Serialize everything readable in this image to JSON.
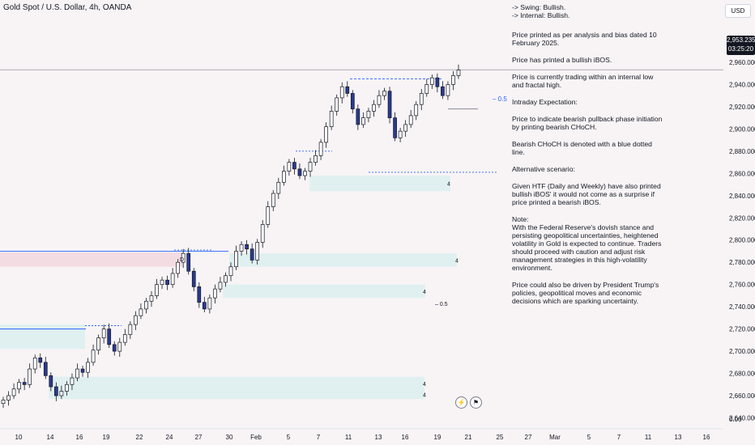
{
  "header": {
    "title": "Gold Spot / U.S. Dollar, 4h, OANDA"
  },
  "currency_button": "USD",
  "price_tag": {
    "price": "2,953.235",
    "countdown": "03:25:20"
  },
  "notes": {
    "swing": "-> Swing:  Bullish.",
    "internal": "-> Internal:  Bullish.",
    "p1": "Price printed as per analysis and bias dated 10 February 2025.",
    "p2": "Price has printed a bullish iBOS.",
    "p3": "Price is currently trading within an internal low and fractal high.",
    "p4": "Intraday Expectation:",
    "p5": "Price to indicate bearish pullback phase initiation by printing bearish CHoCH.",
    "p6": "Bearish CHoCH is denoted with a blue dotted line.",
    "p7": "Alternative scenario:",
    "p8": "Given HTF (Daily and Weekly) have also printed bullish iBOS' it would not come as a surprise if price printed a bearish iBOS.",
    "p9_title": "Note:",
    "p9": "With the Federal Reserve's dovish stance and persisting geopolitical uncertainties, heightened volatility in Gold is expected to continue. Traders should proceed with caution and adjust risk management strategies in this high-volatility environment.",
    "p10": "Price could also be driven by President Trump's policies, geopolitical moves and economic decisions which are sparking uncertainty."
  },
  "annotations": {
    "fib_upper": "0.5",
    "fib_lower": "0.5",
    "zone_label": "4",
    "zone_label_pink": "D"
  },
  "icons": [
    "lightning-icon",
    "flag-icon"
  ],
  "chart_data": {
    "type": "candlestick",
    "title": "Gold Spot / U.S. Dollar, 4h, OANDA",
    "y_ticks": [
      2640,
      2660,
      2680,
      2700,
      2720,
      2740,
      2760,
      2780,
      2800,
      2820,
      2840,
      2860,
      2880,
      2900,
      2920,
      2940,
      2960
    ],
    "y_tick_labels": [
      "2,640.000",
      "2,660.000",
      "2,680.000",
      "2,700.000",
      "2,720.000",
      "2,740.000",
      "2,760.000",
      "2,780.000",
      "2,800.000",
      "2,820.000",
      "2,840.000",
      "2,860.000",
      "2,880.000",
      "2,900.000",
      "2,920.000",
      "2,940.000",
      "2,960.000"
    ],
    "y_zero_label": "0.00",
    "ylim": [
      2630,
      2965
    ],
    "x_tick_labels": [
      "10",
      "14",
      "16",
      "19",
      "22",
      "24",
      "27",
      "30",
      "Feb",
      "5",
      "7",
      "11",
      "13",
      "16",
      "19",
      "21",
      "25",
      "27",
      "Mar",
      "5",
      "7",
      "11",
      "13",
      "16"
    ],
    "last_price": 2953.235,
    "close_series": [
      2656,
      2660,
      2666,
      2672,
      2670,
      2684,
      2694,
      2690,
      2678,
      2668,
      2660,
      2664,
      2670,
      2676,
      2684,
      2681,
      2690,
      2701,
      2712,
      2720,
      2706,
      2700,
      2708,
      2715,
      2724,
      2732,
      2738,
      2745,
      2750,
      2760,
      2764,
      2760,
      2770,
      2780,
      2788,
      2772,
      2758,
      2744,
      2738,
      2748,
      2756,
      2762,
      2768,
      2776,
      2790,
      2796,
      2792,
      2782,
      2798,
      2814,
      2830,
      2842,
      2852,
      2862,
      2870,
      2864,
      2858,
      2862,
      2870,
      2876,
      2888,
      2902,
      2916,
      2928,
      2938,
      2932,
      2918,
      2904,
      2910,
      2916,
      2922,
      2930,
      2934,
      2910,
      2892,
      2898,
      2904,
      2912,
      2922,
      2932,
      2940,
      2946,
      2938,
      2930,
      2940,
      2948,
      2953
    ],
    "demand_zones": [
      {
        "from": 2844,
        "to": 2858
      },
      {
        "from": 2776,
        "to": 2788
      },
      {
        "from": 2748,
        "to": 2760
      },
      {
        "from": 2665,
        "to": 2677
      },
      {
        "from": 2657,
        "to": 2666
      },
      {
        "from": 2702,
        "to": 2724
      }
    ],
    "supply_zone": {
      "from": 2776,
      "to": 2789
    },
    "levels": {
      "bearish_choch": 2861,
      "swing_high": 2945,
      "internal_low": 2918
    }
  }
}
